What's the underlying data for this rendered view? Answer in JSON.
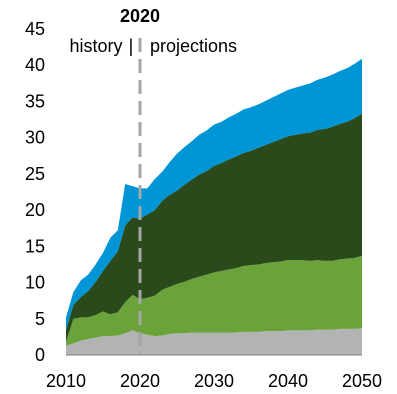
{
  "chart_data": {
    "type": "area",
    "stacked": true,
    "title": "",
    "xlabel": "",
    "ylabel": "",
    "xlim": [
      2010,
      2050
    ],
    "ylim": [
      0,
      45
    ],
    "x_ticks": [
      2010,
      2020,
      2030,
      2040,
      2050
    ],
    "x_tick_labels": [
      "2010",
      "2020",
      "2030",
      "2040",
      "2050"
    ],
    "y_ticks": [
      0,
      5,
      10,
      15,
      20,
      25,
      30,
      35,
      40,
      45
    ],
    "y_tick_labels": [
      "0",
      "5",
      "10",
      "15",
      "20",
      "25",
      "30",
      "35",
      "40",
      "45"
    ],
    "grid": false,
    "legend": "none",
    "x": [
      2010,
      2011,
      2012,
      2013,
      2014,
      2015,
      2016,
      2017,
      2018,
      2019,
      2020,
      2021,
      2022,
      2023,
      2024,
      2025,
      2026,
      2027,
      2028,
      2029,
      2030,
      2031,
      2032,
      2033,
      2034,
      2035,
      2036,
      2037,
      2038,
      2039,
      2040,
      2041,
      2042,
      2043,
      2044,
      2045,
      2046,
      2047,
      2048,
      2049,
      2050
    ],
    "series": [
      {
        "color": "#b3b3b3",
        "values": [
          1.3,
          1.6,
          2.0,
          2.2,
          2.4,
          2.6,
          2.6,
          2.7,
          3.0,
          3.4,
          3.0,
          2.8,
          2.6,
          2.7,
          2.9,
          3.0,
          3.0,
          3.1,
          3.1,
          3.1,
          3.1,
          3.1,
          3.1,
          3.1,
          3.2,
          3.2,
          3.2,
          3.3,
          3.3,
          3.3,
          3.4,
          3.4,
          3.4,
          3.4,
          3.5,
          3.5,
          3.5,
          3.6,
          3.6,
          3.6,
          3.7
        ]
      },
      {
        "color": "#6aa33a",
        "values": [
          0.5,
          3.4,
          3.2,
          3.0,
          3.1,
          3.4,
          3.0,
          3.2,
          4.3,
          4.9,
          4.7,
          5.1,
          5.6,
          6.3,
          6.5,
          6.8,
          7.1,
          7.4,
          7.7,
          8.0,
          8.3,
          8.5,
          8.7,
          8.9,
          9.1,
          9.2,
          9.3,
          9.4,
          9.5,
          9.6,
          9.7,
          9.7,
          9.7,
          9.6,
          9.6,
          9.5,
          9.5,
          9.6,
          9.7,
          9.8,
          10.0
        ]
      },
      {
        "color": "#2b4a1c",
        "values": [
          1.7,
          1.9,
          2.8,
          3.6,
          4.6,
          5.6,
          7.4,
          8.4,
          10.6,
          10.7,
          11.1,
          11.5,
          11.8,
          12.3,
          12.7,
          12.9,
          13.4,
          13.7,
          14.1,
          14.3,
          14.7,
          14.9,
          15.2,
          15.4,
          15.6,
          15.8,
          16.1,
          16.3,
          16.6,
          16.9,
          17.1,
          17.3,
          17.5,
          17.7,
          18.0,
          18.2,
          18.5,
          18.7,
          18.9,
          19.3,
          19.6
        ]
      },
      {
        "color": "#0095d5",
        "values": [
          1.7,
          1.8,
          2.3,
          2.3,
          2.4,
          2.5,
          3.2,
          2.9,
          5.7,
          4.3,
          4.2,
          3.6,
          4.3,
          4.0,
          4.5,
          5.1,
          5.2,
          5.3,
          5.5,
          5.6,
          5.7,
          5.7,
          5.8,
          5.9,
          6.0,
          6.0,
          6.0,
          6.1,
          6.2,
          6.3,
          6.4,
          6.5,
          6.6,
          6.8,
          6.9,
          7.1,
          7.2,
          7.3,
          7.4,
          7.5,
          7.6
        ]
      }
    ],
    "annotations": {
      "divider_year": 2020,
      "divider_label": "2020",
      "left_label": "history",
      "right_label": "projections"
    }
  }
}
